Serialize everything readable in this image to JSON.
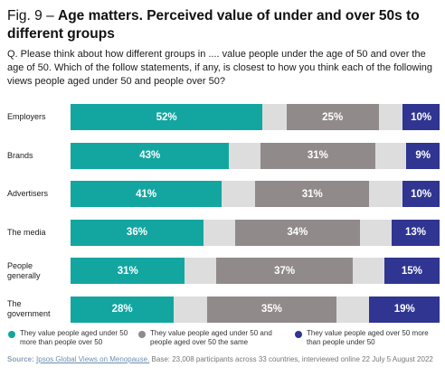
{
  "title": {
    "figure_label": "Fig. 9 –",
    "text": "Age matters. Perceived value of under and over 50s to different groups"
  },
  "question": "Q. Please think about how different groups in .... value people under the age of 50 and over the age of 50. Which of the follow statements, if any, is closest to how you think each of the following views people aged under 50 and people over 50?",
  "colors": {
    "under50": "#13a6a0",
    "same": "#918a8b",
    "over50": "#2f3591",
    "gap": "#dddddd"
  },
  "chart_data": {
    "type": "bar",
    "orientation": "horizontal",
    "stacked": true,
    "categories": [
      "Employers",
      "Brands",
      "Advertisers",
      "The media",
      "People generally",
      "The government"
    ],
    "series": [
      {
        "name": "They value people aged under 50 more than people over 50",
        "values": [
          52,
          43,
          41,
          36,
          31,
          28
        ],
        "labels": [
          "52%",
          "43%",
          "41%",
          "36%",
          "31%",
          "28%"
        ]
      },
      {
        "name": "They value people aged under 50 and people aged over 50 the same",
        "values": [
          25,
          31,
          31,
          34,
          37,
          35
        ],
        "labels": [
          "25%",
          "31%",
          "31%",
          "34%",
          "37%",
          "35%"
        ]
      },
      {
        "name": "They value people aged over 50 more than people under 50",
        "values": [
          10,
          9,
          10,
          13,
          15,
          19
        ],
        "labels": [
          "10%",
          "9%",
          "10%",
          "13%",
          "15%",
          "19%"
        ]
      }
    ],
    "xlim": [
      0,
      100
    ]
  },
  "legend": [
    "They value people aged under 50 more than people over 50",
    "They value people aged under 50 and people aged over 50 the same",
    "They value people aged over 50 more than people under 50"
  ],
  "source": {
    "label": "Source:",
    "link_text": "Ipsos Global Views on Menopause.",
    "text": "Base: 23,008 participants across 33 countries, interviewed online 22 July 5 August 2022"
  }
}
